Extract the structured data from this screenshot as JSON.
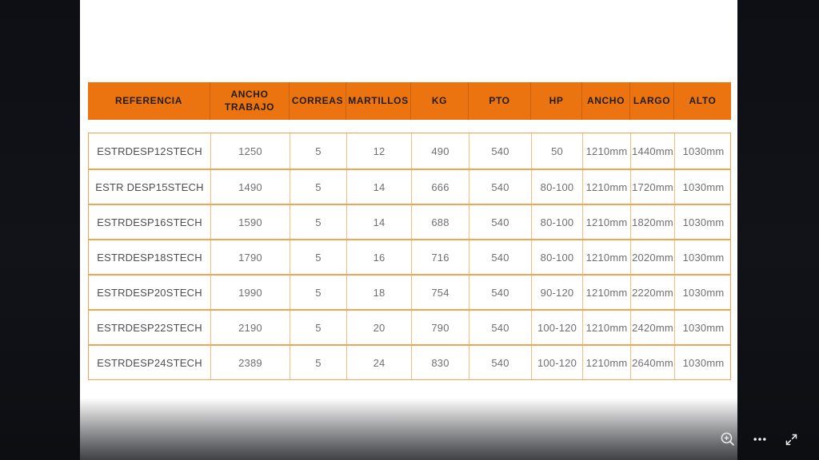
{
  "viewer": {
    "controls": [
      {
        "id": "zoom-in",
        "icon": "magnifier-plus-icon",
        "title": "Zoom in"
      },
      {
        "id": "more",
        "icon": "ellipsis-icon",
        "title": "More options"
      },
      {
        "id": "fullscreen",
        "icon": "expand-arrows-icon",
        "title": "Full screen"
      }
    ]
  },
  "colors": {
    "backdrop": "#0e1015",
    "page_bg": "#ffffff",
    "header_bg": "#EB7411",
    "header_text": "#221d12",
    "header_separator": "#d2670c",
    "border_vertical": "#F8BB79",
    "border_horizontal": "#F2A452",
    "body_text": "#6f6f74",
    "reference_text": "#4d4d52",
    "icon_color": "#e9e9e9"
  },
  "table": {
    "header": [
      "REFERENCIA",
      "ANCHO TRABAJO",
      "CORREAS",
      "MARTILLOS",
      "KG",
      "PTO",
      "HP",
      "ANCHO",
      "LARGO",
      "ALTO"
    ],
    "rows": [
      [
        "ESTRDESP12STECH",
        "1250",
        "5",
        "12",
        "490",
        "540",
        "50",
        "1210mm",
        "1440mm",
        "1030mm"
      ],
      [
        "ESTR DESP15STECH",
        "1490",
        "5",
        "14",
        "666",
        "540",
        "80-100",
        "1210mm",
        "1720mm",
        "1030mm"
      ],
      [
        "ESTRDESP16STECH",
        "1590",
        "5",
        "14",
        "688",
        "540",
        "80-100",
        "1210mm",
        "1820mm",
        "1030mm"
      ],
      [
        "ESTRDESP18STECH",
        "1790",
        "5",
        "16",
        "716",
        "540",
        "80-100",
        "1210mm",
        "2020mm",
        "1030mm"
      ],
      [
        "ESTRDESP20STECH",
        "1990",
        "5",
        "18",
        "754",
        "540",
        "90-120",
        "1210mm",
        "2220mm",
        "1030mm"
      ],
      [
        "ESTRDESP22STECH",
        "2190",
        "5",
        "20",
        "790",
        "540",
        "100-120",
        "1210mm",
        "2420mm",
        "1030mm"
      ],
      [
        "ESTRDESP24STECH",
        "2389",
        "5",
        "24",
        "830",
        "540",
        "100-120",
        "1210mm",
        "2640mm",
        "1030mm"
      ]
    ]
  }
}
